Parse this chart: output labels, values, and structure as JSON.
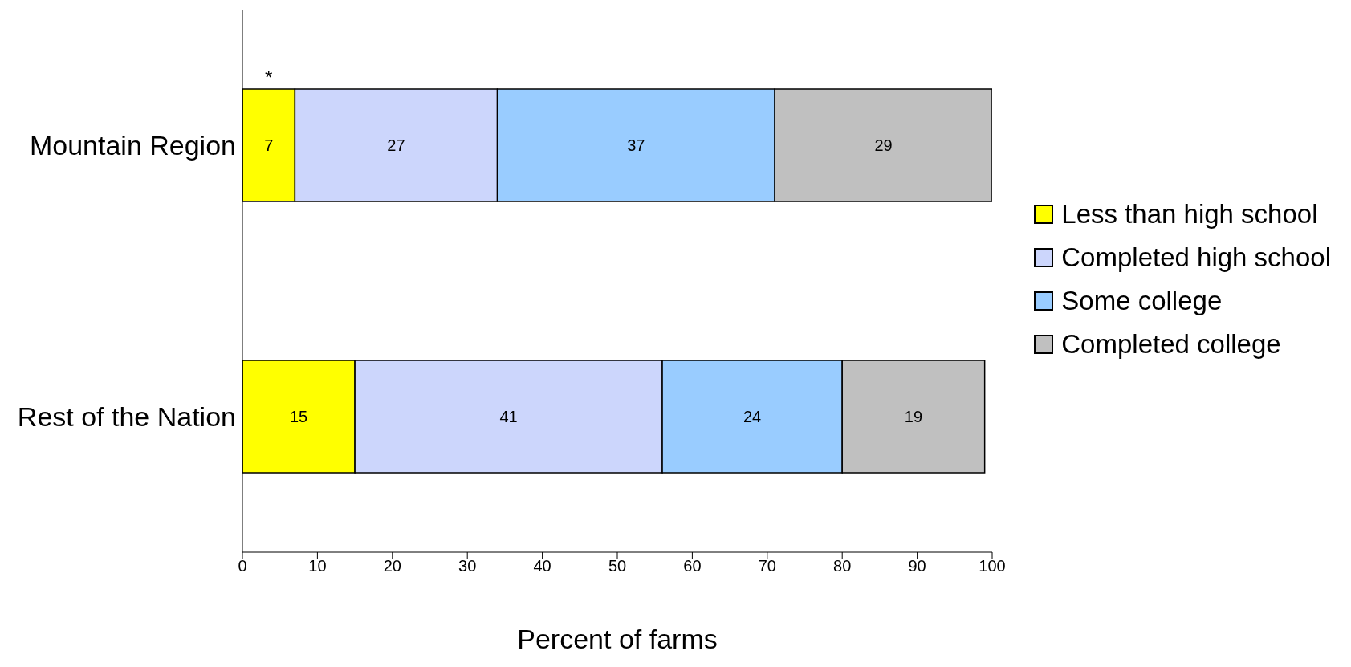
{
  "chart_data": {
    "type": "bar",
    "orientation": "horizontal",
    "stacked": true,
    "categories": [
      "Mountain Region",
      "Rest of the Nation"
    ],
    "series": [
      {
        "name": "Less than high school",
        "color": "#ffff00",
        "values": [
          7,
          15
        ]
      },
      {
        "name": "Completed high school",
        "color": "#ccd6fc",
        "values": [
          27,
          41
        ]
      },
      {
        "name": "Some college",
        "color": "#99ccff",
        "values": [
          37,
          24
        ]
      },
      {
        "name": "Completed college",
        "color": "#c0c0c0",
        "values": [
          29,
          19
        ]
      }
    ],
    "xlabel": "Percent of farms",
    "xlim": [
      0,
      100
    ],
    "xticks": [
      0,
      10,
      20,
      30,
      40,
      50,
      60,
      70,
      80,
      90,
      100
    ],
    "data_labels": true,
    "legend": "right",
    "grid": false,
    "annotations": [
      "*"
    ]
  }
}
